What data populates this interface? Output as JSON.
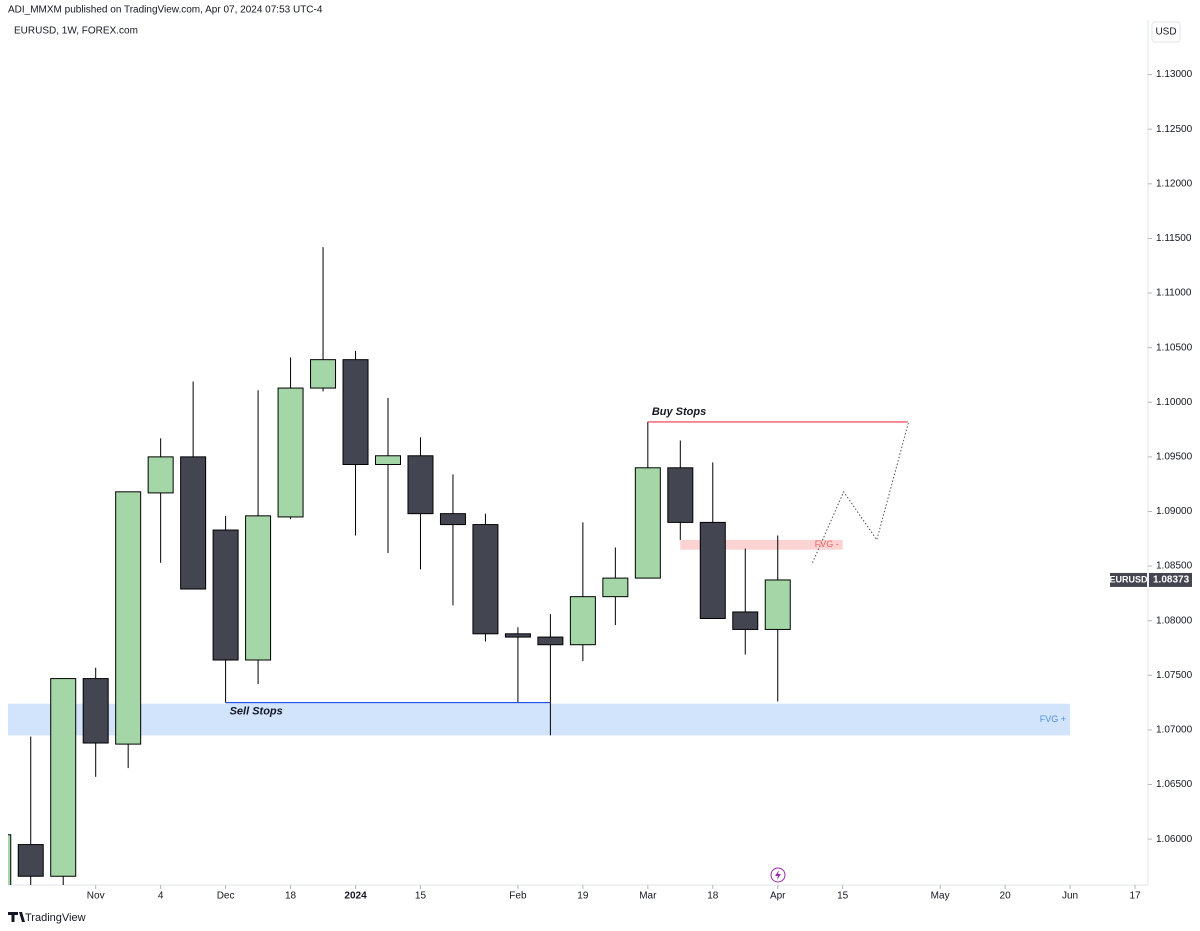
{
  "header": {
    "publisher": "ADI_MMXM published on TradingView.com, Apr 07, 2024 07:53 UTC-4",
    "footer": "TradingView"
  },
  "chart_data": {
    "type": "candlestick",
    "title": "EURUSD, 1W, FOREX.com",
    "currency": "USD",
    "x": [
      -1,
      0,
      1,
      2,
      3,
      4,
      5,
      6,
      7,
      8,
      9,
      10,
      11,
      12,
      13,
      14,
      15,
      16,
      17,
      18,
      19,
      20,
      21,
      22,
      23
    ],
    "open": [
      1.0555,
      1.0595,
      1.0566,
      1.0747,
      1.0687,
      1.0917,
      1.095,
      1.0883,
      1.0764,
      1.0895,
      1.1013,
      1.1039,
      1.0943,
      1.0951,
      1.0898,
      1.0888,
      1.0788,
      1.0785,
      1.0778,
      1.0822,
      1.0839,
      1.094,
      1.089,
      1.0808,
      1.0792
    ],
    "high": [
      1.0604,
      1.0694,
      1.0747,
      1.0757,
      1.0918,
      1.0967,
      1.1019,
      1.0896,
      1.1011,
      1.1041,
      1.1142,
      1.1047,
      1.1004,
      1.0968,
      1.0934,
      1.0898,
      1.0794,
      1.0806,
      1.089,
      1.0867,
      1.0982,
      1.0965,
      1.0945,
      1.0866,
      1.0878
    ],
    "low": [
      1.055,
      1.055,
      1.055,
      1.0657,
      1.0665,
      1.0853,
      1.0829,
      1.0725,
      1.0742,
      1.0893,
      1.101,
      1.0878,
      1.0862,
      1.0847,
      1.0814,
      1.0781,
      1.0725,
      1.0695,
      1.0763,
      1.0796,
      1.0839,
      1.0874,
      1.0802,
      1.0769,
      1.0726
    ],
    "close": [
      1.0604,
      1.0566,
      1.0747,
      1.0688,
      1.0918,
      1.095,
      1.0829,
      1.0764,
      1.0896,
      1.1013,
      1.1039,
      1.0943,
      1.0951,
      1.0898,
      1.0888,
      1.0788,
      1.0785,
      1.0778,
      1.0822,
      1.0839,
      1.094,
      1.089,
      1.0802,
      1.0792,
      1.08373
    ],
    "up_color": "#a5d6a7",
    "down_color": "#434651",
    "xlim": [
      -0.7,
      34.4
    ],
    "xticks": [
      {
        "value": 2,
        "label": "Nov"
      },
      4,
      {
        "value": 6,
        "label": "Dec"
      },
      {
        "value": 8,
        "label": "18"
      },
      {
        "value": 10,
        "label": "2024"
      },
      {
        "value": 12,
        "label": "15"
      },
      {
        "value": 15,
        "label": "Feb"
      },
      {
        "value": 17,
        "label": "19"
      },
      {
        "value": 19,
        "label": "Mar"
      },
      {
        "value": 21,
        "label": "18"
      },
      {
        "value": 23,
        "label": "Apr"
      },
      {
        "value": 25,
        "label": "15"
      },
      {
        "value": 28,
        "label": "May"
      },
      {
        "value": 30,
        "label": "20"
      },
      {
        "value": 32,
        "label": "Jun"
      },
      {
        "value": 34,
        "label": "17"
      }
    ],
    "ylim": [
      1.0558,
      1.135
    ],
    "yticks": [
      {
        "value": 1.06,
        "label": "1.06000"
      },
      {
        "value": 1.065,
        "label": "1.06500"
      },
      {
        "value": 1.07,
        "label": "1.07000"
      },
      {
        "value": 1.075,
        "label": "1.07500"
      },
      {
        "value": 1.08,
        "label": "1.08000"
      },
      {
        "value": 1.085,
        "label": "1.08500"
      },
      {
        "value": 1.09,
        "label": "1.09000"
      },
      {
        "value": 1.095,
        "label": "1.09500"
      },
      {
        "value": 1.1,
        "label": "1.10000"
      },
      {
        "value": 1.105,
        "label": "1.10500"
      },
      {
        "value": 1.11,
        "label": "1.11000"
      },
      {
        "value": 1.115,
        "label": "1.11500"
      },
      {
        "value": 1.12,
        "label": "1.12000"
      },
      {
        "value": 1.125,
        "label": "1.12500"
      },
      {
        "value": 1.13,
        "label": "1.13000"
      }
    ],
    "last_price": {
      "symbol": "EURUSD",
      "value": 1.08373,
      "label": "1.08373"
    },
    "levels": [
      {
        "label": "Sell Stops",
        "value": 1.0725,
        "x": [
          6,
          16
        ],
        "color": "#1e53e5"
      },
      {
        "label": "Buy Stops",
        "value": 1.0982,
        "x": [
          19,
          27
        ],
        "color": "#f23645"
      }
    ],
    "zones": [
      {
        "label": "FVG +",
        "low": 1.0695,
        "high": 1.0724,
        "x": [
          -0.7,
          32
        ],
        "color": "#d2e3fc",
        "text_color": "#4a8fe0"
      },
      {
        "label": "FVG -",
        "low": 1.0865,
        "high": 1.0874,
        "x": [
          20,
          25
        ],
        "color": "#fbd3d3",
        "text_color": "#f26060"
      }
    ],
    "projection": {
      "x": [
        24.07,
        25.03,
        26.05,
        27.03
      ],
      "values": [
        1.0853,
        1.0918,
        1.0874,
        1.0982
      ]
    }
  }
}
